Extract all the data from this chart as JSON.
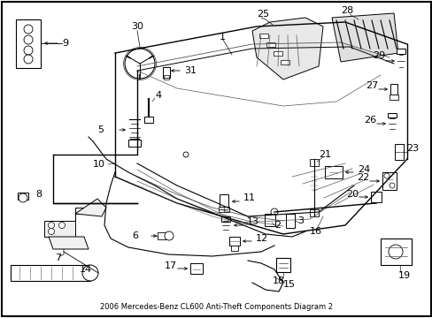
{
  "title": "2006 Mercedes-Benz CL600 Anti-Theft Components Diagram 2",
  "background_color": "#ffffff",
  "fig_width": 4.89,
  "fig_height": 3.6,
  "dpi": 100
}
